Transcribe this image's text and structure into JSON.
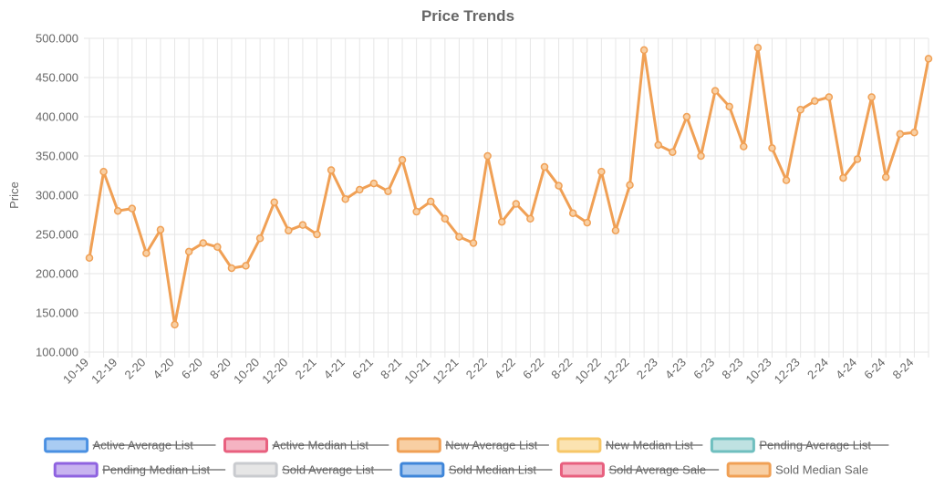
{
  "chart_data": {
    "type": "line",
    "title": "Price Trends",
    "ylabel": "Price",
    "xlabel": "",
    "ylim": [
      100000,
      500000
    ],
    "y_ticks": [
      "100.000",
      "150.000",
      "200.000",
      "250.000",
      "300.000",
      "350.000",
      "400.000",
      "450.000",
      "500.000"
    ],
    "x_tick_labels": [
      "10-19",
      "12-19",
      "2-20",
      "4-20",
      "6-20",
      "8-20",
      "10-20",
      "12-20",
      "2-21",
      "4-21",
      "6-21",
      "8-21",
      "10-21",
      "12-21",
      "2-22",
      "4-22",
      "6-22",
      "8-22",
      "10-22",
      "12-22",
      "2-23",
      "4-23",
      "6-23",
      "8-23",
      "10-23",
      "12-23",
      "2-24",
      "4-24",
      "6-24",
      "8-24"
    ],
    "grid": true,
    "legend_position": "bottom",
    "legend": [
      {
        "name": "Active Average List",
        "color": "#4a90e2",
        "fill": "#a9ccf3",
        "hidden": true
      },
      {
        "name": "Active Median List",
        "color": "#e8607f",
        "fill": "#f5b3c2",
        "hidden": true
      },
      {
        "name": "New Average List",
        "color": "#f0a055",
        "fill": "#f8cfa3",
        "hidden": true
      },
      {
        "name": "New Median List",
        "color": "#f7c768",
        "fill": "#fbe3b1",
        "hidden": true
      },
      {
        "name": "Pending Average List",
        "color": "#6fbfbf",
        "fill": "#bfe2e2",
        "hidden": true
      },
      {
        "name": "Pending Median List",
        "color": "#8f63e0",
        "fill": "#c8b3f0",
        "hidden": true
      },
      {
        "name": "Sold Average List",
        "color": "#c9cbcf",
        "fill": "#e6e6e6",
        "hidden": true
      },
      {
        "name": "Sold Median List",
        "color": "#3f86d9",
        "fill": "#a7c8ef",
        "hidden": true
      },
      {
        "name": "Sold Average Sale",
        "color": "#e8607f",
        "fill": "#f5b3c2",
        "hidden": true
      },
      {
        "name": "Sold Median Sale",
        "color": "#f0a055",
        "fill": "#f8cfa3",
        "hidden": false
      }
    ],
    "series": [
      {
        "name": "Sold Median Sale",
        "color": "#f0a055",
        "values": [
          220000,
          330000,
          280000,
          283000,
          226000,
          256000,
          135000,
          228000,
          239000,
          234000,
          207000,
          210000,
          245000,
          291000,
          255000,
          262000,
          250000,
          332000,
          295000,
          307000,
          315000,
          305000,
          345000,
          279000,
          292000,
          270000,
          247000,
          239000,
          350000,
          266000,
          289000,
          270000,
          336000,
          312000,
          277000,
          265000,
          330000,
          255000,
          313000,
          485000,
          364000,
          355000,
          400000,
          350000,
          433000,
          413000,
          362000,
          488000,
          360000,
          319000,
          409000,
          420000,
          425000,
          322000,
          346000,
          425000,
          323000,
          378000,
          380000,
          474000
        ]
      }
    ]
  }
}
